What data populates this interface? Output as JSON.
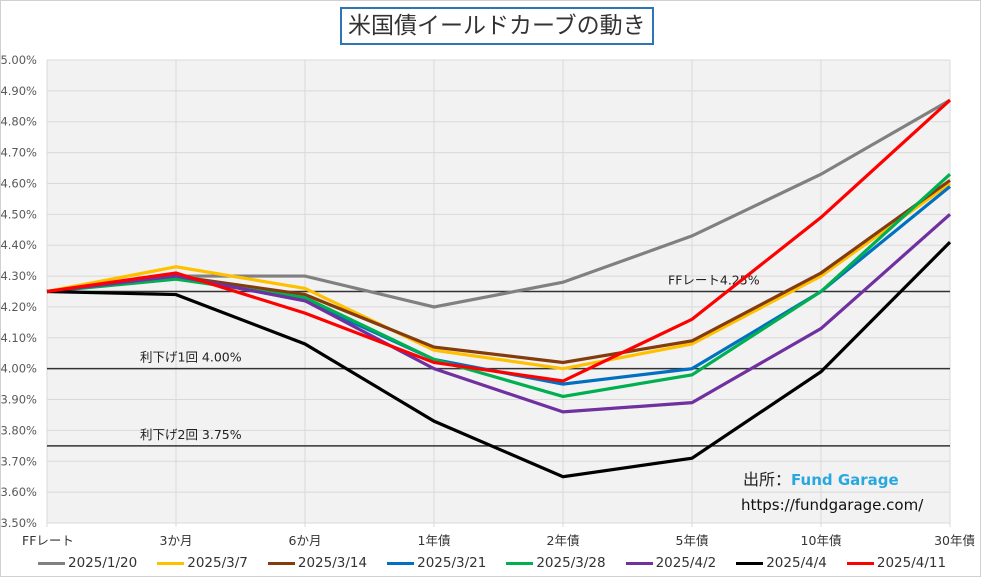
{
  "chart_data": {
    "type": "line",
    "title": "米国債イールドカーブの動き",
    "xlabel": "",
    "ylabel": "",
    "categories": [
      "FFレート",
      "3か月",
      "6か月",
      "1年債",
      "2年債",
      "5年債",
      "10年債",
      "30年債"
    ],
    "ylim": [
      3.5,
      5.0
    ],
    "yticks": [
      "5.00%",
      "4.90%",
      "4.80%",
      "4.70%",
      "4.60%",
      "4.50%",
      "4.40%",
      "4.30%",
      "4.20%",
      "4.10%",
      "4.00%",
      "3.90%",
      "3.80%",
      "3.70%",
      "3.60%",
      "3.50%"
    ],
    "ytick_values": [
      5.0,
      4.9,
      4.8,
      4.7,
      4.6,
      4.5,
      4.4,
      4.3,
      4.2,
      4.1,
      4.0,
      3.9,
      3.8,
      3.7,
      3.6,
      3.5
    ],
    "grid": true,
    "legend_position": "bottom",
    "series": [
      {
        "name": "2025/1/20",
        "color": "#808080",
        "values": [
          4.25,
          4.3,
          4.3,
          4.2,
          4.28,
          4.43,
          4.63,
          4.87
        ]
      },
      {
        "name": "2025/3/7",
        "color": "#ffc000",
        "values": [
          4.25,
          4.33,
          4.26,
          4.06,
          4.0,
          4.08,
          4.3,
          4.6
        ]
      },
      {
        "name": "2025/3/14",
        "color": "#843c0c",
        "values": [
          4.25,
          4.3,
          4.24,
          4.07,
          4.02,
          4.09,
          4.31,
          4.61
        ]
      },
      {
        "name": "2025/3/21",
        "color": "#0070c0",
        "values": [
          4.25,
          4.3,
          4.22,
          4.03,
          3.95,
          4.0,
          4.25,
          4.59
        ]
      },
      {
        "name": "2025/3/28",
        "color": "#00b050",
        "values": [
          4.25,
          4.29,
          4.23,
          4.03,
          3.91,
          3.98,
          4.25,
          4.63
        ]
      },
      {
        "name": "2025/4/2",
        "color": "#7030a0",
        "values": [
          4.25,
          4.3,
          4.22,
          4.0,
          3.86,
          3.89,
          4.13,
          4.5
        ]
      },
      {
        "name": "2025/4/4",
        "color": "#000000",
        "values": [
          4.25,
          4.24,
          4.08,
          3.83,
          3.65,
          3.71,
          3.99,
          4.41
        ]
      },
      {
        "name": "2025/4/11",
        "color": "#ff0000",
        "values": [
          4.25,
          4.31,
          4.18,
          4.02,
          3.96,
          4.16,
          4.49,
          4.87
        ]
      }
    ],
    "reference_lines": [
      {
        "value": 4.25,
        "label": "FFレート4.25%"
      },
      {
        "value": 4.0,
        "label": "利下げ1回 4.00%"
      },
      {
        "value": 3.75,
        "label": "利下げ2回 3.75%"
      }
    ],
    "annotations": {
      "source_prefix": "出所：",
      "source_brand": "Fund Garage",
      "source_url": "https://fundgarage.com/"
    }
  },
  "colors": {
    "plot_background": "#f2f2f2",
    "gridline": "#d9d9d9",
    "title_border": "#2e75b6",
    "brand": "#29a8e0"
  }
}
